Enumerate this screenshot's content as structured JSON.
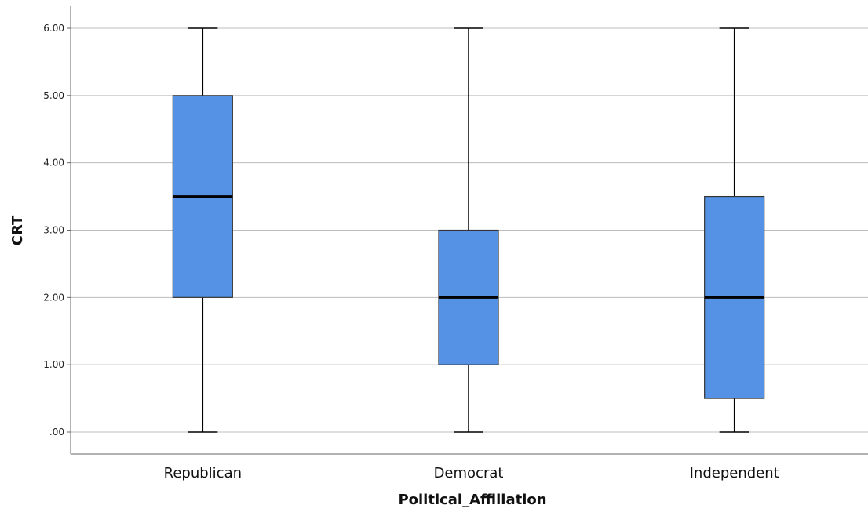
{
  "chart_data": {
    "type": "boxplot",
    "xlabel": "Political_Affiliation",
    "ylabel": "CRT",
    "ylim": [
      0,
      6
    ],
    "yticks": [
      0,
      1,
      2,
      3,
      4,
      5,
      6
    ],
    "ytick_labels": [
      ".00",
      "1.00",
      "2.00",
      "3.00",
      "4.00",
      "5.00",
      "6.00"
    ],
    "grid": "horizontal",
    "categories": [
      "Republican",
      "Democrat",
      "Independent"
    ],
    "boxes": [
      {
        "category": "Republican",
        "min": 0,
        "q1": 2,
        "median": 3.5,
        "q3": 5,
        "max": 6
      },
      {
        "category": "Democrat",
        "min": 0,
        "q1": 1,
        "median": 2,
        "q3": 3,
        "max": 6
      },
      {
        "category": "Independent",
        "min": 0,
        "q1": 0.5,
        "median": 2,
        "q3": 3.5,
        "max": 6
      }
    ],
    "colors": {
      "box_fill": "#5591E4",
      "box_stroke": "#333333",
      "median": "#000000",
      "whisker": "#000000",
      "grid": "#BDBDBD",
      "axis": "#666666"
    }
  }
}
